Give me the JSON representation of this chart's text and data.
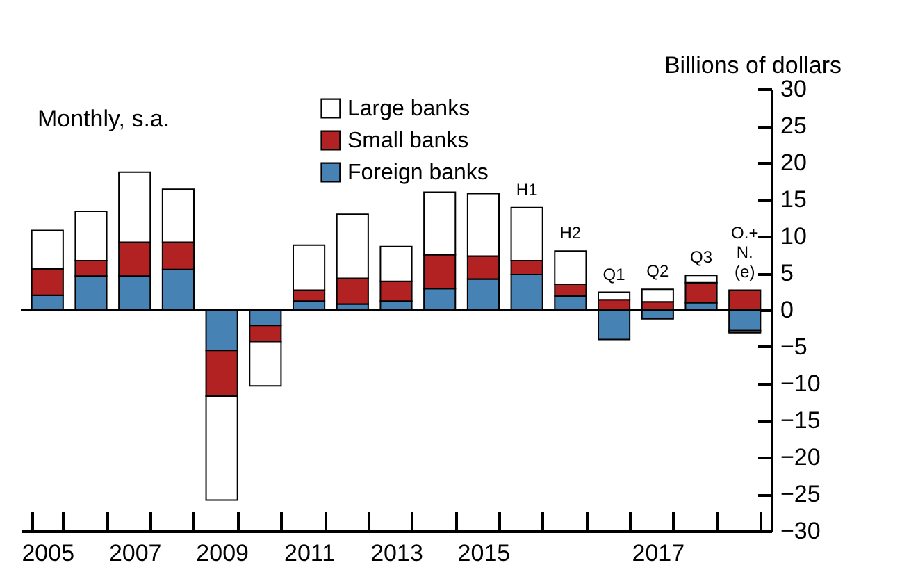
{
  "chart_data": {
    "type": "bar",
    "stacked": true,
    "ylabel": "Billions of dollars",
    "annotations": [
      "Monthly, s.a."
    ],
    "categories": [
      "2005",
      null,
      "2007",
      null,
      "2009",
      null,
      "2011",
      null,
      "2013",
      null,
      "2015",
      null,
      null,
      null,
      "2017",
      null,
      null
    ],
    "series": [
      {
        "name": "Foreign banks",
        "color": "#4682b4",
        "values": [
          2.0,
          4.6,
          4.6,
          5.5,
          -5.5,
          -2.1,
          1.2,
          0.8,
          1.2,
          2.9,
          4.2,
          4.8,
          1.9,
          -4.0,
          -1.2,
          1.0,
          -2.8
        ]
      },
      {
        "name": "Small banks",
        "color": "#b22222",
        "values": [
          3.6,
          2.1,
          4.6,
          3.7,
          -6.2,
          -2.2,
          1.5,
          3.5,
          2.7,
          4.6,
          3.1,
          1.9,
          1.6,
          1.4,
          1.1,
          2.7,
          2.7
        ]
      },
      {
        "name": "Large banks",
        "color": "#ffffff",
        "values": [
          5.2,
          6.7,
          9.5,
          7.2,
          -14.1,
          -6.0,
          6.1,
          8.7,
          4.7,
          8.5,
          8.5,
          7.2,
          4.5,
          1.0,
          1.7,
          1.0,
          -0.3
        ],
        "value_labels": [
          null,
          null,
          null,
          null,
          null,
          null,
          null,
          null,
          null,
          null,
          null,
          "H1",
          "H2",
          "Q1",
          "Q2",
          "Q3",
          "O.+ N. (e)"
        ]
      }
    ],
    "ylim": [
      -30,
      30
    ],
    "yticks": [
      -30,
      -25,
      -20,
      -15,
      -10,
      -5,
      0,
      5,
      10,
      15,
      20,
      25,
      30
    ],
    "ref_lines": [
      {
        "axis": "y",
        "value": 0
      }
    ],
    "legend": "top"
  }
}
